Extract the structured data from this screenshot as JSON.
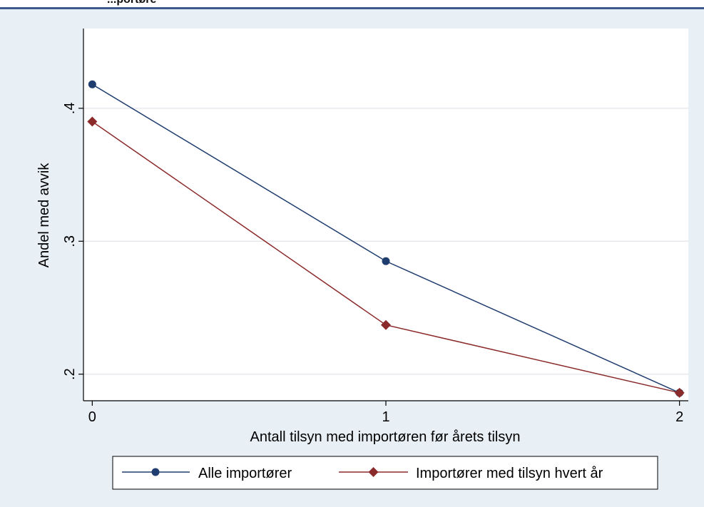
{
  "header": {
    "cut_title": "...portøre"
  },
  "chart_data": {
    "type": "line",
    "xlabel": "Antall tilsyn med importøren før årets tilsyn",
    "ylabel": "Andel med avvik",
    "x": [
      0,
      1,
      2
    ],
    "x_ticks": [
      "0",
      "1",
      "2"
    ],
    "xlim": [
      -0.03,
      2.03
    ],
    "y_ticks": [
      ".2",
      ".3",
      ".4"
    ],
    "y_tick_values": [
      0.2,
      0.3,
      0.4
    ],
    "ylim": [
      0.18,
      0.46
    ],
    "grid": true,
    "legend_position": "bottom",
    "series": [
      {
        "name": "Alle importører",
        "values": [
          0.418,
          0.285,
          0.186
        ],
        "color": "#1f3d6e",
        "marker": "circle"
      },
      {
        "name": "Importører med tilsyn hvert år",
        "values": [
          0.39,
          0.237,
          0.186
        ],
        "color": "#8b2a2a",
        "marker": "diamond"
      }
    ],
    "colors": {
      "plot_background": "#ffffff",
      "outer_background": "#e8eff5",
      "grid": "#e6eaee"
    }
  }
}
